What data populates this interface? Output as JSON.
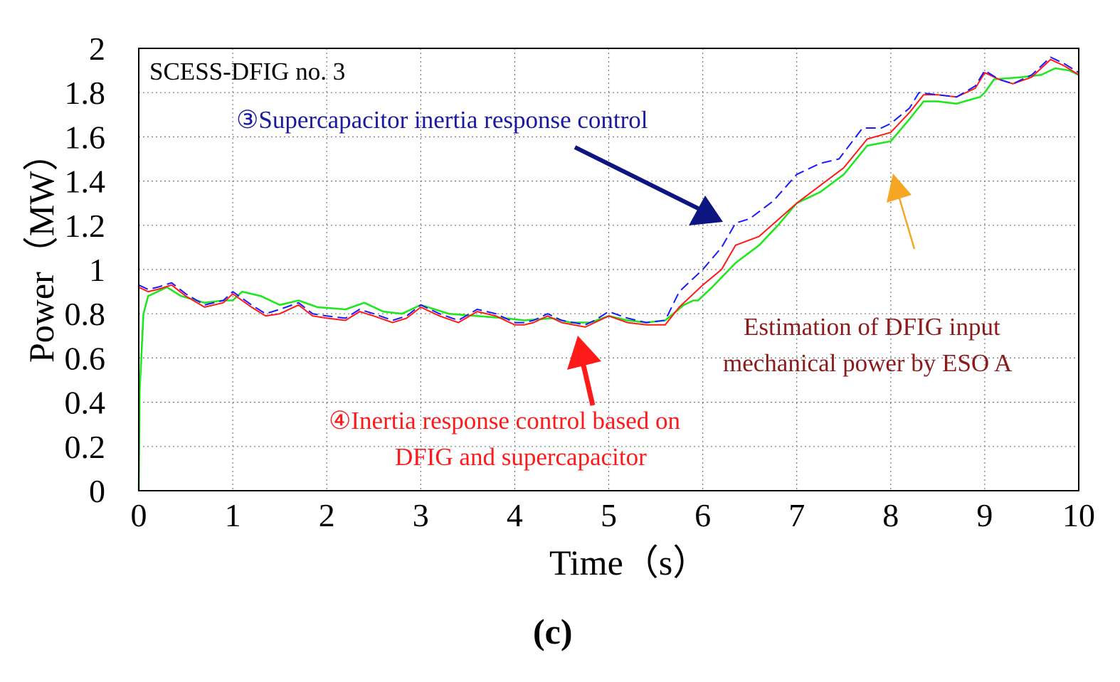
{
  "chart_data": {
    "type": "line",
    "title": "SCESS-DFIG no. 3",
    "panel_label": "(c)",
    "xlabel": "Time（s）",
    "ylabel": "Power（MW）",
    "xlim": [
      0,
      10
    ],
    "ylim": [
      0,
      2
    ],
    "xticks": [
      0,
      1,
      2,
      3,
      4,
      5,
      6,
      7,
      8,
      9,
      10
    ],
    "yticks": [
      0,
      0.2,
      0.4,
      0.6,
      0.8,
      1,
      1.2,
      1.4,
      1.6,
      1.8,
      2
    ],
    "grid": true,
    "series": [
      {
        "name": "Supercapacitor inertia response control",
        "color": "#1a1aff",
        "style": "dashed",
        "points": [
          [
            0,
            0.93
          ],
          [
            0.1,
            0.91
          ],
          [
            0.2,
            0.92
          ],
          [
            0.35,
            0.94
          ],
          [
            0.5,
            0.89
          ],
          [
            0.7,
            0.84
          ],
          [
            0.9,
            0.86
          ],
          [
            1.0,
            0.9
          ],
          [
            1.2,
            0.84
          ],
          [
            1.35,
            0.8
          ],
          [
            1.5,
            0.82
          ],
          [
            1.7,
            0.85
          ],
          [
            1.85,
            0.8
          ],
          [
            2.0,
            0.79
          ],
          [
            2.2,
            0.78
          ],
          [
            2.35,
            0.82
          ],
          [
            2.5,
            0.8
          ],
          [
            2.7,
            0.77
          ],
          [
            2.85,
            0.79
          ],
          [
            3.0,
            0.84
          ],
          [
            3.2,
            0.8
          ],
          [
            3.4,
            0.77
          ],
          [
            3.6,
            0.82
          ],
          [
            3.8,
            0.8
          ],
          [
            4.0,
            0.76
          ],
          [
            4.1,
            0.76
          ],
          [
            4.2,
            0.77
          ],
          [
            4.35,
            0.8
          ],
          [
            4.5,
            0.77
          ],
          [
            4.75,
            0.75
          ],
          [
            4.85,
            0.77
          ],
          [
            5.0,
            0.81
          ],
          [
            5.2,
            0.78
          ],
          [
            5.4,
            0.76
          ],
          [
            5.6,
            0.77
          ],
          [
            5.75,
            0.9
          ],
          [
            6.0,
            1.0
          ],
          [
            6.2,
            1.1
          ],
          [
            6.35,
            1.21
          ],
          [
            6.5,
            1.23
          ],
          [
            6.75,
            1.31
          ],
          [
            7.0,
            1.43
          ],
          [
            7.25,
            1.48
          ],
          [
            7.45,
            1.5
          ],
          [
            7.7,
            1.64
          ],
          [
            7.9,
            1.64
          ],
          [
            8.0,
            1.66
          ],
          [
            8.2,
            1.73
          ],
          [
            8.3,
            1.8
          ],
          [
            8.5,
            1.79
          ],
          [
            8.7,
            1.78
          ],
          [
            8.9,
            1.83
          ],
          [
            9.0,
            1.9
          ],
          [
            9.15,
            1.86
          ],
          [
            9.3,
            1.84
          ],
          [
            9.5,
            1.88
          ],
          [
            9.7,
            1.96
          ],
          [
            9.85,
            1.93
          ],
          [
            10.0,
            1.89
          ]
        ]
      },
      {
        "name": "Inertia response control based on DFIG and supercapacitor",
        "color": "#ff1a1a",
        "style": "solid",
        "points": [
          [
            0,
            0.92
          ],
          [
            0.1,
            0.9
          ],
          [
            0.2,
            0.91
          ],
          [
            0.35,
            0.93
          ],
          [
            0.5,
            0.88
          ],
          [
            0.7,
            0.83
          ],
          [
            0.9,
            0.85
          ],
          [
            1.0,
            0.89
          ],
          [
            1.2,
            0.83
          ],
          [
            1.35,
            0.79
          ],
          [
            1.5,
            0.8
          ],
          [
            1.7,
            0.84
          ],
          [
            1.85,
            0.79
          ],
          [
            2.0,
            0.78
          ],
          [
            2.2,
            0.77
          ],
          [
            2.35,
            0.81
          ],
          [
            2.5,
            0.79
          ],
          [
            2.7,
            0.76
          ],
          [
            2.85,
            0.78
          ],
          [
            3.0,
            0.83
          ],
          [
            3.2,
            0.79
          ],
          [
            3.4,
            0.76
          ],
          [
            3.6,
            0.81
          ],
          [
            3.8,
            0.79
          ],
          [
            4.0,
            0.75
          ],
          [
            4.1,
            0.75
          ],
          [
            4.2,
            0.76
          ],
          [
            4.35,
            0.79
          ],
          [
            4.5,
            0.76
          ],
          [
            4.75,
            0.74
          ],
          [
            4.85,
            0.76
          ],
          [
            5.0,
            0.79
          ],
          [
            5.2,
            0.76
          ],
          [
            5.4,
            0.75
          ],
          [
            5.6,
            0.75
          ],
          [
            5.75,
            0.83
          ],
          [
            6.0,
            0.93
          ],
          [
            6.2,
            1.0
          ],
          [
            6.35,
            1.11
          ],
          [
            6.6,
            1.15
          ],
          [
            7.0,
            1.3
          ],
          [
            7.25,
            1.38
          ],
          [
            7.5,
            1.46
          ],
          [
            7.75,
            1.59
          ],
          [
            8.0,
            1.62
          ],
          [
            8.2,
            1.71
          ],
          [
            8.35,
            1.79
          ],
          [
            8.5,
            1.79
          ],
          [
            8.7,
            1.78
          ],
          [
            8.9,
            1.82
          ],
          [
            9.0,
            1.89
          ],
          [
            9.15,
            1.86
          ],
          [
            9.3,
            1.84
          ],
          [
            9.5,
            1.87
          ],
          [
            9.7,
            1.95
          ],
          [
            9.85,
            1.92
          ],
          [
            10.0,
            1.88
          ]
        ]
      },
      {
        "name": "Estimation of DFIG input mechanical power by ESO A",
        "color": "#22e622",
        "style": "solid",
        "points": [
          [
            0,
            0
          ],
          [
            0.01,
            0.45
          ],
          [
            0.05,
            0.8
          ],
          [
            0.1,
            0.88
          ],
          [
            0.2,
            0.9
          ],
          [
            0.3,
            0.92
          ],
          [
            0.45,
            0.88
          ],
          [
            0.7,
            0.85
          ],
          [
            0.9,
            0.86
          ],
          [
            1.0,
            0.86
          ],
          [
            1.1,
            0.9
          ],
          [
            1.3,
            0.88
          ],
          [
            1.5,
            0.84
          ],
          [
            1.7,
            0.86
          ],
          [
            1.9,
            0.83
          ],
          [
            2.2,
            0.82
          ],
          [
            2.4,
            0.85
          ],
          [
            2.6,
            0.81
          ],
          [
            2.8,
            0.8
          ],
          [
            3.0,
            0.84
          ],
          [
            3.3,
            0.8
          ],
          [
            3.6,
            0.79
          ],
          [
            3.9,
            0.78
          ],
          [
            4.1,
            0.77
          ],
          [
            4.4,
            0.78
          ],
          [
            4.6,
            0.76
          ],
          [
            4.8,
            0.76
          ],
          [
            5.0,
            0.79
          ],
          [
            5.2,
            0.77
          ],
          [
            5.4,
            0.76
          ],
          [
            5.6,
            0.77
          ],
          [
            5.8,
            0.84
          ],
          [
            5.9,
            0.86
          ],
          [
            5.95,
            0.86
          ],
          [
            6.1,
            0.92
          ],
          [
            6.35,
            1.03
          ],
          [
            6.6,
            1.11
          ],
          [
            6.8,
            1.2
          ],
          [
            7.0,
            1.3
          ],
          [
            7.25,
            1.35
          ],
          [
            7.5,
            1.43
          ],
          [
            7.75,
            1.56
          ],
          [
            8.0,
            1.58
          ],
          [
            8.2,
            1.68
          ],
          [
            8.35,
            1.76
          ],
          [
            8.5,
            1.76
          ],
          [
            8.7,
            1.75
          ],
          [
            8.95,
            1.78
          ],
          [
            9.0,
            1.8
          ],
          [
            9.1,
            1.86
          ],
          [
            9.4,
            1.87
          ],
          [
            9.6,
            1.88
          ],
          [
            9.75,
            1.91
          ],
          [
            9.9,
            1.9
          ],
          [
            10.0,
            1.88
          ]
        ]
      }
    ],
    "annotations": [
      {
        "id": "a3",
        "text": "③Supercapacitor inertia response control",
        "color": "#1a1aa0"
      },
      {
        "id": "a4a",
        "text": "④Inertia response control based on",
        "color": "#ff1a1a"
      },
      {
        "id": "a4b",
        "text": "DFIG and supercapacitor",
        "color": "#ff1a1a"
      },
      {
        "id": "eso1",
        "text": "Estimation of DFIG input",
        "color": "#8b1a1a"
      },
      {
        "id": "eso2",
        "text": "mechanical power by ESO A",
        "color": "#8b1a1a"
      }
    ],
    "arrow_colors": {
      "blue": "#0d1580",
      "red": "#ff1a1a",
      "orange": "#f5a623"
    }
  }
}
